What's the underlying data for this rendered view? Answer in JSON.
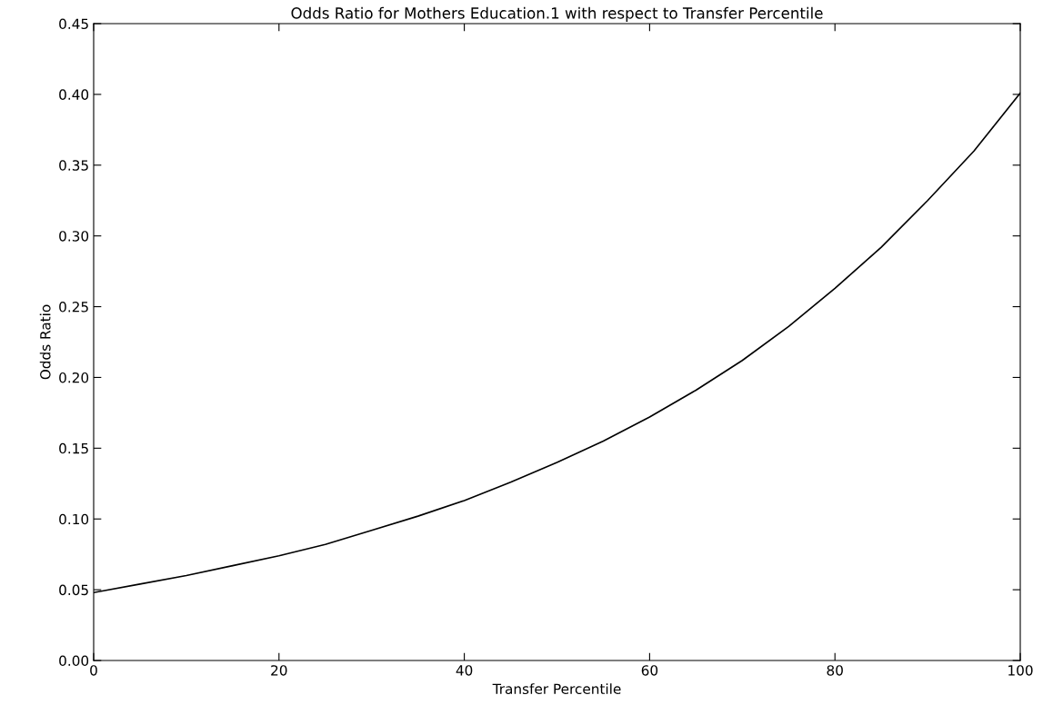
{
  "chart_data": {
    "type": "line",
    "title": "Odds Ratio for Mothers Education.1 with respect to Transfer Percentile",
    "xlabel": "Transfer Percentile",
    "ylabel": "Odds Ratio",
    "x": [
      0,
      5,
      10,
      15,
      20,
      25,
      30,
      35,
      40,
      45,
      50,
      55,
      60,
      65,
      70,
      75,
      80,
      85,
      90,
      95,
      100
    ],
    "series": [
      {
        "color": "#000000",
        "values": [
          0.048,
          0.054,
          0.06,
          0.067,
          0.074,
          0.082,
          0.092,
          0.102,
          0.113,
          0.126,
          0.14,
          0.155,
          0.172,
          0.191,
          0.212,
          0.236,
          0.263,
          0.292,
          0.325,
          0.36,
          0.401
        ]
      }
    ],
    "xlim": [
      0,
      100
    ],
    "xticks": [
      0,
      20,
      40,
      60,
      80,
      100
    ],
    "ylim": [
      0,
      0.45
    ],
    "yticks": [
      {
        "value": 0,
        "label": "0.00"
      },
      {
        "value": 0.05,
        "label": "0.05"
      },
      {
        "value": 0.1,
        "label": "0.10"
      },
      {
        "value": 0.15,
        "label": "0.15"
      },
      {
        "value": 0.2,
        "label": "0.20"
      },
      {
        "value": 0.25,
        "label": "0.25"
      },
      {
        "value": 0.3,
        "label": "0.30"
      },
      {
        "value": 0.35,
        "label": "0.35"
      },
      {
        "value": 0.4,
        "label": "0.40"
      },
      {
        "value": 0.45,
        "label": "0.45"
      }
    ],
    "grid": false,
    "legend": false,
    "marker": "none",
    "line_style": "solid"
  }
}
